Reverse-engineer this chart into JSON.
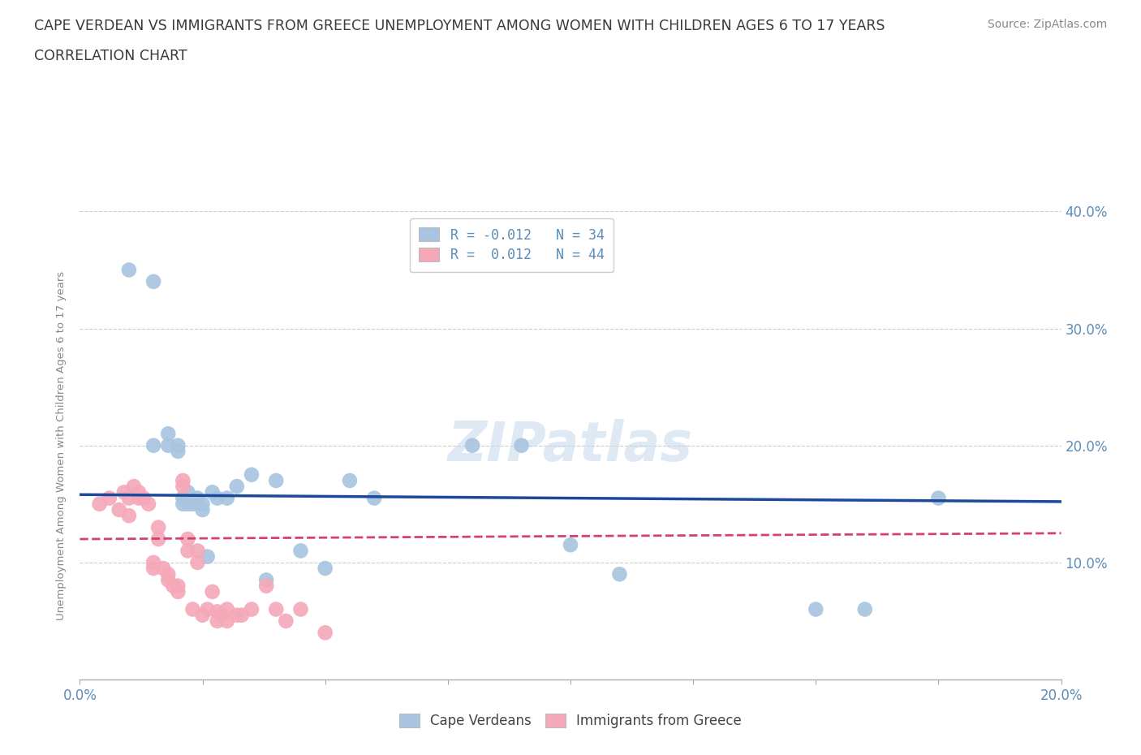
{
  "title_line1": "CAPE VERDEAN VS IMMIGRANTS FROM GREECE UNEMPLOYMENT AMONG WOMEN WITH CHILDREN AGES 6 TO 17 YEARS",
  "title_line2": "CORRELATION CHART",
  "source": "Source: ZipAtlas.com",
  "ylabel": "Unemployment Among Women with Children Ages 6 to 17 years",
  "xlim": [
    0.0,
    0.2
  ],
  "ylim": [
    0.0,
    0.4
  ],
  "xticks": [
    0.0,
    0.025,
    0.05,
    0.075,
    0.1,
    0.125,
    0.15,
    0.175,
    0.2
  ],
  "yticks": [
    0.0,
    0.1,
    0.2,
    0.3,
    0.4
  ],
  "watermark": "ZIPatlas",
  "cape_verdean_color": "#a8c4e0",
  "greece_color": "#f4a8b8",
  "cape_verdean_line_color": "#1a4a99",
  "greece_line_color": "#d44070",
  "title_color": "#3a3a3a",
  "axis_label_color": "#5b8db8",
  "grid_color": "#cccccc",
  "background_color": "#ffffff",
  "cape_verdean_R": -0.012,
  "cape_verdean_N": 34,
  "greece_R": 0.012,
  "greece_N": 44,
  "cape_verdean_x": [
    0.01,
    0.015,
    0.015,
    0.018,
    0.018,
    0.02,
    0.02,
    0.021,
    0.021,
    0.022,
    0.022,
    0.023,
    0.024,
    0.025,
    0.025,
    0.026,
    0.027,
    0.028,
    0.03,
    0.032,
    0.035,
    0.038,
    0.04,
    0.045,
    0.05,
    0.055,
    0.06,
    0.08,
    0.09,
    0.1,
    0.11,
    0.15,
    0.16,
    0.175
  ],
  "cape_verdean_y": [
    0.35,
    0.34,
    0.2,
    0.21,
    0.2,
    0.2,
    0.195,
    0.155,
    0.15,
    0.16,
    0.15,
    0.15,
    0.155,
    0.15,
    0.145,
    0.105,
    0.16,
    0.155,
    0.155,
    0.165,
    0.175,
    0.085,
    0.17,
    0.11,
    0.095,
    0.17,
    0.155,
    0.2,
    0.2,
    0.115,
    0.09,
    0.06,
    0.06,
    0.155
  ],
  "greece_x": [
    0.004,
    0.006,
    0.008,
    0.009,
    0.01,
    0.01,
    0.011,
    0.012,
    0.012,
    0.013,
    0.014,
    0.015,
    0.015,
    0.016,
    0.016,
    0.017,
    0.018,
    0.018,
    0.019,
    0.02,
    0.02,
    0.021,
    0.021,
    0.022,
    0.022,
    0.023,
    0.024,
    0.024,
    0.025,
    0.026,
    0.027,
    0.028,
    0.028,
    0.029,
    0.03,
    0.03,
    0.032,
    0.033,
    0.035,
    0.038,
    0.04,
    0.042,
    0.045,
    0.05
  ],
  "greece_y": [
    0.15,
    0.155,
    0.145,
    0.16,
    0.155,
    0.14,
    0.165,
    0.16,
    0.155,
    0.155,
    0.15,
    0.1,
    0.095,
    0.13,
    0.12,
    0.095,
    0.09,
    0.085,
    0.08,
    0.08,
    0.075,
    0.17,
    0.165,
    0.12,
    0.11,
    0.06,
    0.11,
    0.1,
    0.055,
    0.06,
    0.075,
    0.058,
    0.05,
    0.055,
    0.06,
    0.05,
    0.055,
    0.055,
    0.06,
    0.08,
    0.06,
    0.05,
    0.06,
    0.04
  ],
  "cv_trend_x": [
    0.0,
    0.2
  ],
  "cv_trend_y": [
    0.158,
    0.152
  ],
  "gr_trend_x": [
    0.0,
    0.2
  ],
  "gr_trend_y": [
    0.12,
    0.125
  ]
}
